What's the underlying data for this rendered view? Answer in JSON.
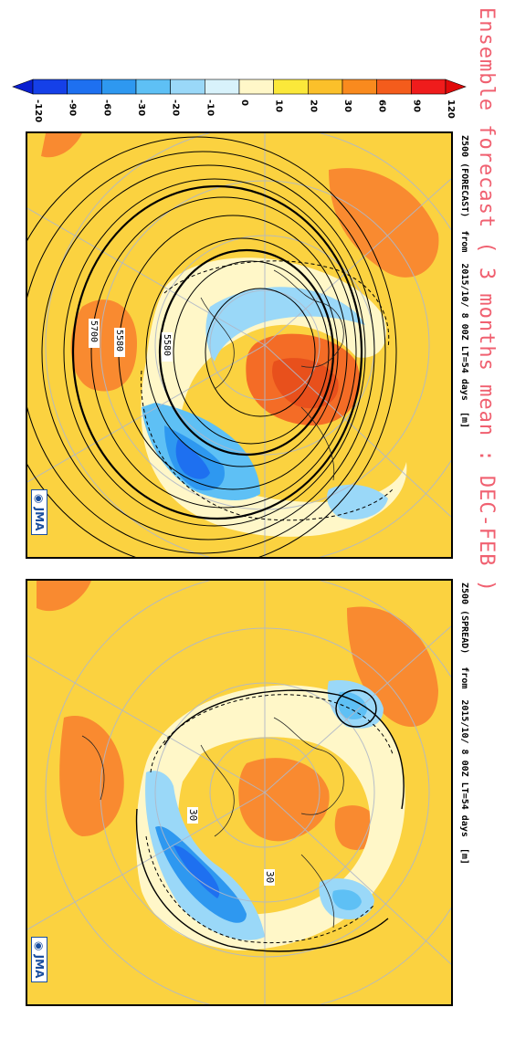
{
  "title": "Ensemble forecast ( 3 months mean : DEC-FEB )",
  "panels": [
    {
      "caption": {
        "variable": "Z500 (FORECAST)",
        "from": "from",
        "init": "2015/10/ 8 00Z LT=54 days",
        "unit": "[m]"
      },
      "contour_labels": [
        "5700",
        "5580",
        "5580"
      ],
      "logo": "JMA"
    },
    {
      "caption": {
        "variable": "Z500 (SPREAD)",
        "from": "from",
        "init": "2015/10/ 8 00Z LT=54 days",
        "unit": "[m]"
      },
      "contour_labels": [
        "30",
        "30"
      ],
      "logo": "JMA"
    }
  ],
  "colorbar": {
    "ticks": [
      "-120",
      "-90",
      "-60",
      "-30",
      "-20",
      "-10",
      "0",
      "10",
      "20",
      "30",
      "60",
      "90",
      "120"
    ],
    "colors": [
      "#0a1fd0",
      "#1540e8",
      "#1e70f0",
      "#2e98f0",
      "#5ec0f5",
      "#9ad8f8",
      "#d8f2fb",
      "#fff7c8",
      "#fbe83a",
      "#fbc02a",
      "#f98a1e",
      "#f45c1c",
      "#ef1c1c",
      "#e00a0a"
    ]
  },
  "colors": {
    "title": "#f06070",
    "frame": "#000000",
    "logo": "#1a4fa0"
  }
}
